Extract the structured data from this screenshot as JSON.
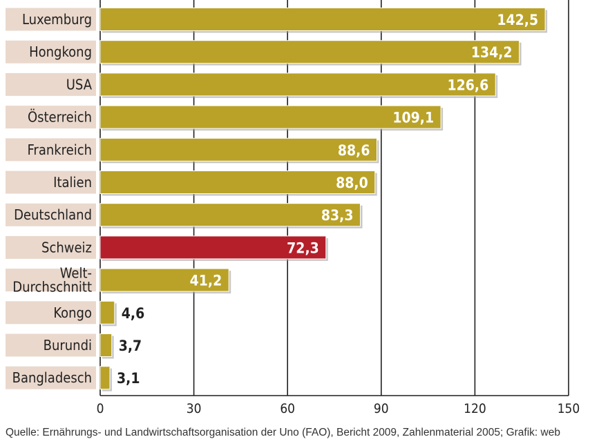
{
  "chart_data": {
    "type": "bar",
    "orientation": "horizontal",
    "categories": [
      "Luxemburg",
      "Hongkong",
      "USA",
      "Österreich",
      "Frankreich",
      "Italien",
      "Deutschland",
      "Schweiz",
      "Welt-Durchschnitt",
      "Kongo",
      "Burundi",
      "Bangladesch"
    ],
    "category_lines": [
      [
        "Luxemburg"
      ],
      [
        "Hongkong"
      ],
      [
        "USA"
      ],
      [
        "Österreich"
      ],
      [
        "Frankreich"
      ],
      [
        "Italien"
      ],
      [
        "Deutschland"
      ],
      [
        "Schweiz"
      ],
      [
        "Welt-",
        "Durchschnitt"
      ],
      [
        "Kongo"
      ],
      [
        "Burundi"
      ],
      [
        "Bangladesch"
      ]
    ],
    "values": [
      142.5,
      134.2,
      126.6,
      109.1,
      88.6,
      88.0,
      83.3,
      72.3,
      41.2,
      4.6,
      3.7,
      3.1
    ],
    "value_labels": [
      "142,5",
      "134,2",
      "126,6",
      "109,1",
      "88,6",
      "88,0",
      "83,3",
      "72,3",
      "41,2",
      "4,6",
      "3,7",
      "3,1"
    ],
    "highlight": "Schweiz",
    "xlim": [
      0,
      150
    ],
    "xticks": [
      0,
      30,
      60,
      90,
      120,
      150
    ],
    "xtick_labels": [
      "0",
      "30",
      "60",
      "90",
      "120",
      "150"
    ],
    "grid": "vertical",
    "colors": {
      "bar": "#b9a227",
      "highlight_bar": "#b51f2a",
      "label_bg": "#ead8cc",
      "grid": "#1f1f1f",
      "value_inside": "#ffffff",
      "value_outside": "#222222"
    }
  },
  "source_text": "Quelle: Ernährungs- und Landwirtschaftsorganisation der Uno (FAO), Bericht 2009, Zahlenmaterial 2005; Grafik: web"
}
